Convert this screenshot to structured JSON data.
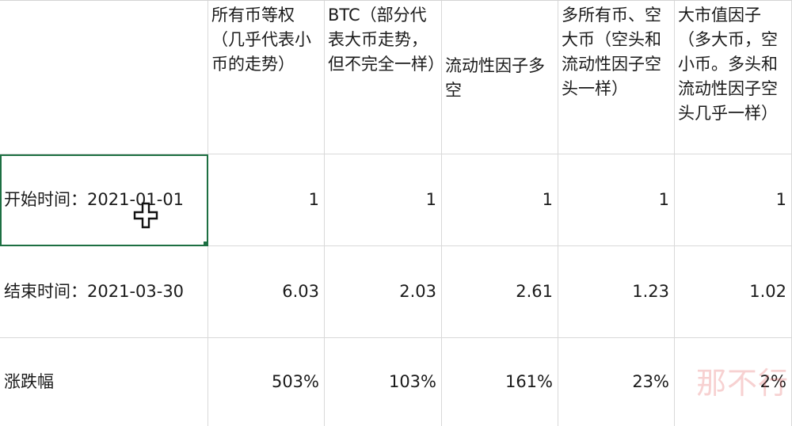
{
  "table": {
    "headers": [
      "",
      "所有币等权（几乎代表小币的走势）",
      "BTC（部分代表大币走势，但不完全一样）",
      "流动性因子多空",
      "多所有币、空大币（空头和流动性因子空头一样）",
      "大市值因子（多大币，空小币。多头和流动性因子空头几乎一样）"
    ],
    "rows": [
      {
        "label": "开始时间：2021-01-01",
        "values": [
          "1",
          "1",
          "1",
          "1",
          "1"
        ]
      },
      {
        "label": "结束时间：2021-03-30",
        "values": [
          "6.03",
          "2.03",
          "2.61",
          "1.23",
          "1.02"
        ]
      },
      {
        "label": "涨跌幅",
        "values": [
          "503%",
          "103%",
          "161%",
          "23%",
          "2%"
        ]
      }
    ]
  },
  "selected_cell": "A2",
  "watermark": "那不行",
  "colors": {
    "selection": "#1d6f42",
    "gridline": "#d9d9d9",
    "watermark": "#e45858"
  },
  "cursor_icon": "crosshair-plus-icon"
}
